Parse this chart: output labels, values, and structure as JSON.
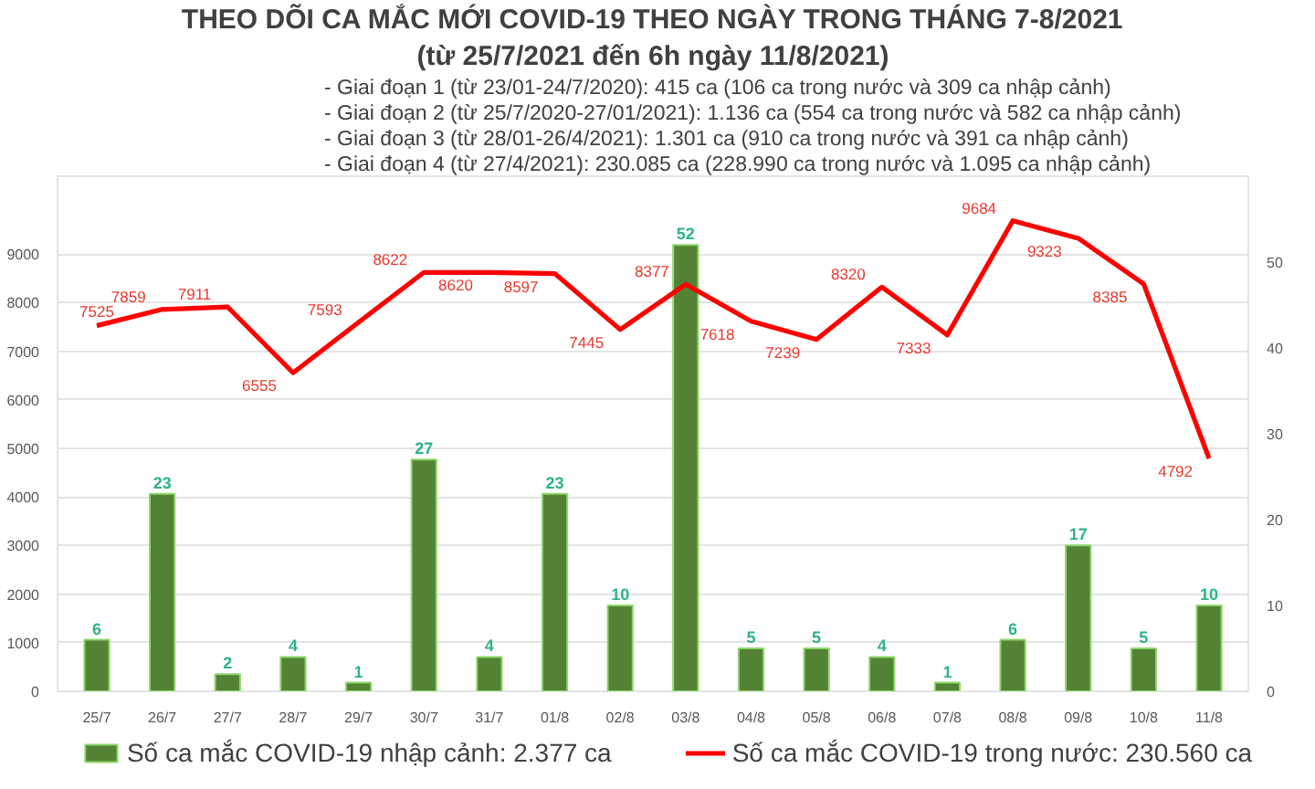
{
  "chart_data": {
    "type": "bar",
    "title": "THEO DÕI CA MẮC MỚI COVID-19 THEO NGÀY TRONG THÁNG 7-8/2021",
    "subtitle": "(từ 25/7/2021 đến 6h ngày 11/8/2021)",
    "annotations": [
      "- Giai đoạn 1 (từ 23/01-24/7/2020): 415 ca (106 ca trong nước và 309 ca nhập cảnh)",
      "- Giai đoạn 2 (từ 25/7/2020-27/01/2021): 1.136 ca (554 ca trong nước và 582 ca nhập cảnh)",
      "- Giai đoạn 3 (từ 28/01-26/4/2021): 1.301 ca (910 ca trong nước và 391 ca nhập cảnh)",
      "- Giai đoạn 4 (từ 27/4/2021): 230.085 ca (228.990 ca trong nước và 1.095 ca nhập cảnh)"
    ],
    "categories": [
      "25/7",
      "26/7",
      "27/7",
      "28/7",
      "29/7",
      "30/7",
      "31/7",
      "01/8",
      "02/8",
      "03/8",
      "04/8",
      "05/8",
      "06/8",
      "07/8",
      "08/8",
      "09/8",
      "10/8",
      "11/8"
    ],
    "series": [
      {
        "name": "Số ca mắc COVID-19 nhập cảnh: 2.377 ca",
        "axis": "y2",
        "color": "#548235",
        "values": [
          6,
          23,
          2,
          4,
          1,
          27,
          4,
          23,
          10,
          52,
          5,
          5,
          4,
          1,
          6,
          17,
          5,
          10
        ]
      },
      {
        "name": "Số ca mắc COVID-19 trong nước: 230.560 ca",
        "type": "line",
        "color": "#ff0000",
        "values": [
          7525,
          7859,
          7911,
          6555,
          7593,
          8622,
          8620,
          8597,
          7445,
          8377,
          7618,
          7239,
          8320,
          7333,
          9684,
          9323,
          8385,
          4792
        ]
      }
    ],
    "ylim": [
      0,
      10600
    ],
    "yticks": [
      0,
      1000,
      2000,
      3000,
      4000,
      5000,
      6000,
      7000,
      8000,
      9000
    ],
    "y2lim": [
      0,
      60
    ],
    "y2ticks": [
      0,
      10,
      20,
      30,
      40,
      50
    ],
    "grid": "y",
    "legend": "bottom",
    "data_labels": true,
    "line_style": "solid"
  }
}
